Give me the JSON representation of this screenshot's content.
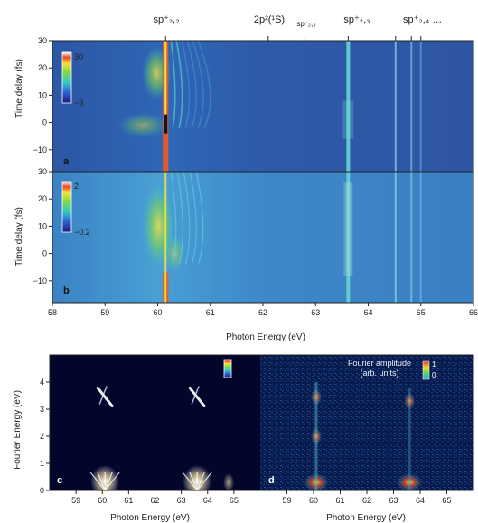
{
  "chart_data": [
    {
      "panel": "a",
      "type": "heatmap",
      "xlabel": "",
      "ylabel": "Time delay (fs)",
      "xlim": [
        58,
        66
      ],
      "ylim": [
        -18,
        30
      ],
      "yticks": [
        30,
        20,
        10,
        0,
        -10
      ],
      "colorbar": {
        "max_label": "30",
        "min_label": "−3",
        "range": [
          -3,
          30
        ]
      },
      "top_axis_labels": [
        "sp⁺₂,₂",
        "2p²(¹S)",
        "sp⁻₂,₃",
        "sp⁺₂,₃",
        "sp⁺₂,₄ …"
      ],
      "top_axis_positions_eV": [
        60.15,
        62.1,
        62.8,
        63.62,
        64.52
      ],
      "resonance_lines_eV": [
        60.15,
        60.35,
        63.62,
        64.52,
        64.82,
        65.0
      ]
    },
    {
      "panel": "b",
      "type": "heatmap",
      "xlabel": "Photon Energy (eV)",
      "ylabel": "Time delay (fs)",
      "xlim": [
        58,
        66
      ],
      "ylim": [
        -18,
        30
      ],
      "xticks": [
        58,
        59,
        60,
        61,
        62,
        63,
        64,
        65,
        66
      ],
      "yticks": [
        30,
        20,
        10,
        0,
        -10
      ],
      "colorbar": {
        "max_label": "2",
        "min_label": "−0.2",
        "range": [
          -0.2,
          2
        ]
      }
    },
    {
      "panel": "c",
      "type": "heatmap",
      "xlabel": "Photon Energy (eV)",
      "ylabel": "Fourier Energy (eV)",
      "xlim": [
        58,
        66
      ],
      "ylim": [
        0,
        5
      ],
      "xticks": [
        59,
        60,
        61,
        62,
        63,
        64,
        65
      ],
      "yticks": [
        0,
        1,
        2,
        3,
        4
      ],
      "peaks": [
        {
          "x": 60.1,
          "y": 3.45,
          "note": "diagonal feature"
        },
        {
          "x": 63.6,
          "y": 3.45,
          "note": "diagonal feature"
        },
        {
          "x": 60.1,
          "y": 0.2,
          "note": "bright low-frequency"
        },
        {
          "x": 63.6,
          "y": 0.2,
          "note": "bright low-frequency"
        },
        {
          "x": 64.8,
          "y": 0.2,
          "note": "weak"
        }
      ]
    },
    {
      "panel": "d",
      "type": "heatmap",
      "xlabel": "Photon Energy (eV)",
      "ylabel": "",
      "xlim": [
        58,
        66
      ],
      "ylim": [
        0,
        5
      ],
      "xticks": [
        59,
        60,
        61,
        62,
        63,
        64,
        65
      ],
      "legend_title": "Fourier amplitude",
      "legend_subtitle": "(arb. units)",
      "colorbar": {
        "max_label": "1",
        "min_label": "0",
        "range": [
          0,
          1
        ]
      },
      "peaks": [
        {
          "x": 60.1,
          "y": 3.45
        },
        {
          "x": 63.6,
          "y": 3.3
        },
        {
          "x": 60.1,
          "y": 2.0
        },
        {
          "x": 60.1,
          "y": 0.3
        },
        {
          "x": 63.6,
          "y": 0.3
        }
      ]
    }
  ],
  "labels": {
    "panel_a": "a",
    "panel_b": "b",
    "panel_c": "c",
    "panel_d": "d",
    "ylabel_ab": "Time delay (fs)",
    "xlabel_ab": "Photon Energy (eV)",
    "ylabel_c": "Fourier Energy (eV)",
    "xlabel_c": "Photon Energy (eV)",
    "xlabel_d": "Photon Energy (eV)",
    "top_sp22": "sp⁺₂,₂",
    "top_2p2": "2p²(¹S)",
    "top_sp23m": "sp⁻₂,₃",
    "top_sp23p": "sp⁺₂,₃",
    "top_sp24": "sp⁺₂,₄ …",
    "cb_a_max": "30",
    "cb_a_min": "−3",
    "cb_b_max": "2",
    "cb_b_min": "−0.2",
    "legend_d_title": "Fourier amplitude",
    "legend_d_sub": "(arb. units)",
    "cb_d_max": "1",
    "cb_d_min": "0"
  },
  "colors": {
    "bg_a": "#2f5aa8",
    "bg_b": "#3f86c8",
    "bg_c": "#03062a",
    "bg_d": "#071a4a",
    "line_main": "#e25a2a",
    "line_cyan": "#6fe3d8"
  }
}
